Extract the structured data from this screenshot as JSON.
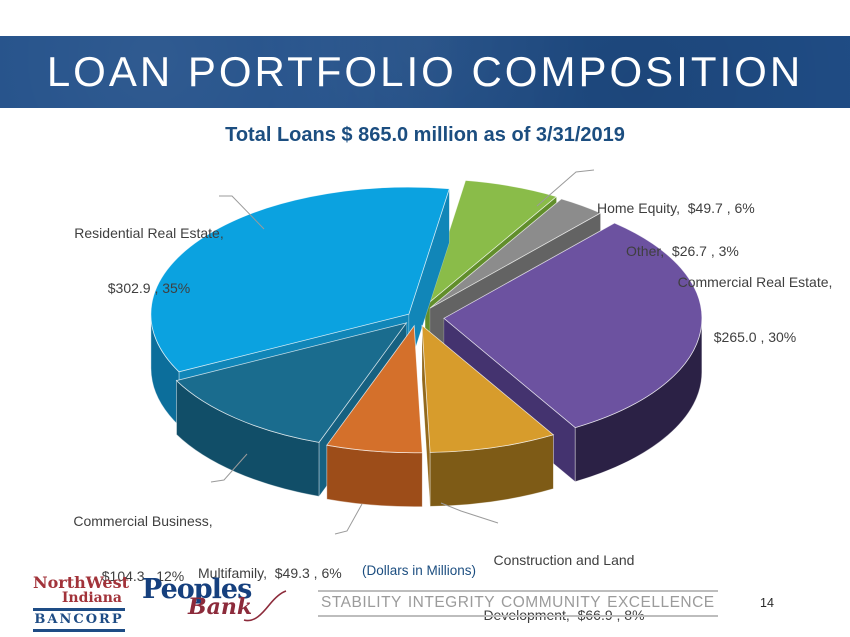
{
  "slide": {
    "title": "LOAN PORTFOLIO COMPOSITION",
    "subtitle": "Total Loans $ 865.0 million as of 3/31/2019",
    "values_banner": [
      "STABILITY",
      "INTEGRITY",
      "COMMUNITY",
      "EXCELLENCE"
    ],
    "page_number": "14"
  },
  "chart_data": {
    "type": "pie",
    "title": "Loan Portfolio Composition",
    "total": 865.0,
    "as_of": "3/31/2019",
    "unit": "USD millions",
    "units_note": "(Dollars in Millions)",
    "slices": [
      {
        "label": "Home Equity",
        "value": 49.7,
        "pct": 6,
        "color": "#8ABC49",
        "side_color": "#4F7D1F",
        "wall_color": "#618E2B",
        "label_lines": [
          "Home Equity,  $49.7 , 6%"
        ]
      },
      {
        "label": "Other",
        "value": 26.7,
        "pct": 3,
        "color": "#8C8C8C",
        "side_color": "#515151",
        "wall_color": "#636363",
        "label_lines": [
          "Other,  $26.7 , 3%"
        ]
      },
      {
        "label": "Commercial Real Estate",
        "value": 265.0,
        "pct": 30,
        "color": "#6C52A0",
        "side_color": "#2B2145",
        "wall_color": "#44336F",
        "label_lines": [
          "Commercial Real Estate,",
          "$265.0 , 30%"
        ]
      },
      {
        "label": "Construction and Land Development",
        "value": 66.9,
        "pct": 8,
        "color": "#D79C2C",
        "side_color": "#7E5B16",
        "wall_color": "#93691C",
        "label_lines": [
          "Construction and Land",
          "Development,  $66.9 , 8%"
        ]
      },
      {
        "label": "Multifamily",
        "value": 49.3,
        "pct": 6,
        "color": "#D4702B",
        "side_color": "#9D4D19",
        "wall_color": "#B65A20",
        "label_lines": [
          "Multifamily,  $49.3 , 6%"
        ]
      },
      {
        "label": "Commercial Business",
        "value": 104.3,
        "pct": 12,
        "color": "#1A6C8E",
        "side_color": "#114E68",
        "wall_color": "#166181",
        "label_lines": [
          "Commercial Business,",
          "$104.3 , 12%"
        ]
      },
      {
        "label": "Residential Real Estate",
        "value": 302.9,
        "pct": 35,
        "color": "#0BA2E0",
        "side_color": "#0C6E9B",
        "wall_color": "#1186B8",
        "label_lines": [
          "Residential Real Estate,",
          "$302.9 , 35%"
        ]
      }
    ]
  },
  "footer": {
    "logo_nwi": {
      "line1": "NorthWest",
      "line2": "Indiana",
      "line3": "BANCORP"
    },
    "logo_peoples": {
      "line1": "Peoples",
      "line2": "Bank"
    }
  },
  "colors": {
    "header_bg": "#204E88",
    "header_text": "#FFFFFF",
    "subtitle_text": "#1C4E80",
    "label_text": "#3F3F3F",
    "banner_text": "#9B9B9B",
    "nwi_red": "#A2333A",
    "bancorp_blue": "#1E4C85",
    "peoples_navy": "#16407E",
    "bank_red": "#8C2B3B"
  }
}
